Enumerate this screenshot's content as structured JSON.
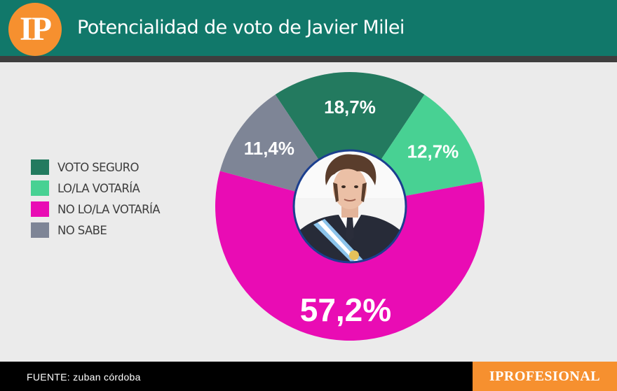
{
  "header": {
    "logo_text": "IP",
    "title": "Potencialidad de voto de Javier Milei"
  },
  "chart_data": {
    "type": "pie",
    "title": "Potencialidad de voto de Javier Milei",
    "categories": [
      "VOTO SEGURO",
      "LO/LA VOTARÍA",
      "NO LO/LA VOTARÍA",
      "NO SABE"
    ],
    "values": [
      18.7,
      12.7,
      57.2,
      11.4
    ],
    "value_labels": [
      "18,7%",
      "12,7%",
      "57,2%",
      "11,4%"
    ],
    "colors": [
      "#237a5f",
      "#48d193",
      "#e90cb4",
      "#7e8596"
    ],
    "style": "donut with center photo",
    "legend": "left"
  },
  "center_photo": {
    "icon": "javier-milei-portrait"
  },
  "footer": {
    "source": "FUENTE: zuban córdoba",
    "brand": "IPROFESIONAL"
  }
}
